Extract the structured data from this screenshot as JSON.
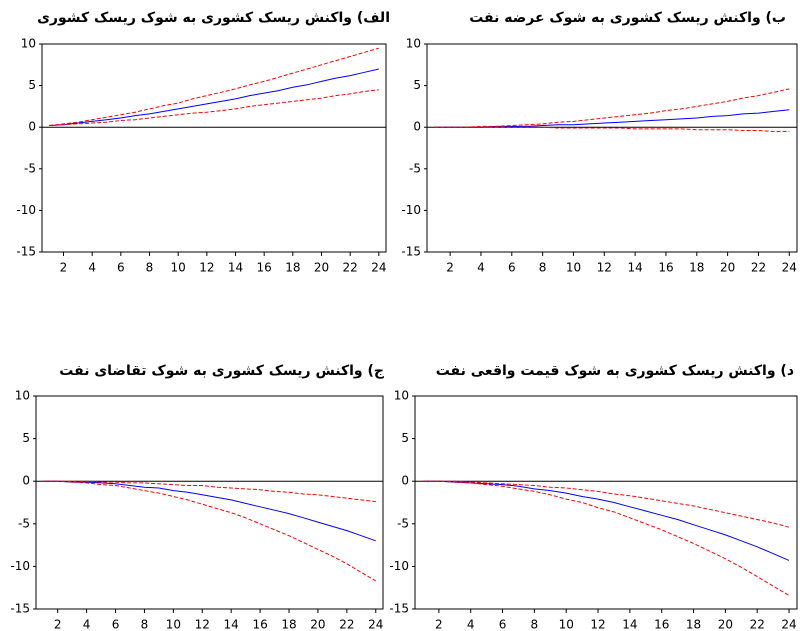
{
  "chart_data": [
    {
      "type": "line",
      "title": "الف) واکنش ریسک کشوری به شوک ریسک کشوری",
      "categories": [
        null,
        2,
        null,
        4,
        null,
        6,
        null,
        8,
        null,
        10,
        null,
        12,
        null,
        14,
        null,
        16,
        null,
        18,
        null,
        20,
        null,
        22,
        null,
        24
      ],
      "ylim": [
        -15,
        10
      ],
      "yticks": [
        10,
        5,
        0,
        -5,
        -10,
        -15
      ],
      "zero_line": true,
      "series": [
        {
          "color": "#0000ff",
          "dash": false,
          "values": [
            0.2,
            0.3,
            0.5,
            0.7,
            0.9,
            1.1,
            1.4,
            1.6,
            1.9,
            2.2,
            2.5,
            2.8,
            3.1,
            3.4,
            3.8,
            4.1,
            4.4,
            4.8,
            5.1,
            5.5,
            5.9,
            6.2,
            6.6,
            7.0
          ]
        },
        {
          "color": "#ff0000",
          "dash": true,
          "values": [
            0.2,
            0.4,
            0.6,
            0.9,
            1.2,
            1.5,
            1.8,
            2.2,
            2.6,
            2.9,
            3.4,
            3.8,
            4.2,
            4.6,
            5.1,
            5.5,
            6.0,
            6.5,
            7.0,
            7.5,
            8.0,
            8.5,
            9.0,
            9.5
          ]
        },
        {
          "color": "#ff0000",
          "dash": true,
          "values": [
            0.2,
            0.3,
            0.4,
            0.5,
            0.6,
            0.8,
            0.9,
            1.1,
            1.3,
            1.5,
            1.7,
            1.8,
            2.0,
            2.2,
            2.5,
            2.7,
            2.9,
            3.1,
            3.3,
            3.5,
            3.8,
            4.0,
            4.3,
            4.5
          ]
        }
      ]
    },
    {
      "type": "line",
      "title": "ب) واکنش ریسک کشوری به شوک عرضه نفت",
      "categories": [
        null,
        2,
        null,
        4,
        null,
        6,
        null,
        8,
        null,
        10,
        null,
        12,
        null,
        14,
        null,
        16,
        null,
        18,
        null,
        20,
        null,
        22,
        null,
        24
      ],
      "ylim": [
        -15,
        10
      ],
      "yticks": [
        10,
        5,
        0,
        -5,
        -10,
        -15
      ],
      "zero_line": true,
      "series": [
        {
          "color": "#0000ff",
          "dash": false,
          "values": [
            0,
            0,
            0,
            0,
            0.1,
            0.1,
            0.1,
            0.2,
            0.3,
            0.3,
            0.4,
            0.5,
            0.6,
            0.7,
            0.8,
            0.9,
            1.0,
            1.1,
            1.3,
            1.4,
            1.6,
            1.7,
            1.9,
            2.1
          ]
        },
        {
          "color": "#ff0000",
          "dash": true,
          "values": [
            0,
            0,
            0,
            0.1,
            0.1,
            0.2,
            0.3,
            0.4,
            0.6,
            0.7,
            0.9,
            1.1,
            1.3,
            1.5,
            1.7,
            2.0,
            2.2,
            2.5,
            2.8,
            3.1,
            3.5,
            3.8,
            4.2,
            4.6
          ]
        },
        {
          "color": "#ff0000",
          "dash": true,
          "values": [
            0,
            0,
            0,
            0,
            0,
            0,
            0,
            0,
            -0.1,
            -0.1,
            -0.1,
            -0.1,
            -0.1,
            -0.2,
            -0.2,
            -0.2,
            -0.2,
            -0.3,
            -0.3,
            -0.3,
            -0.4,
            -0.4,
            -0.5,
            -0.5
          ]
        }
      ]
    },
    {
      "type": "line",
      "title": "ج) واکنش ریسک کشوری به شوک تقاضای نفت",
      "categories": [
        null,
        2,
        null,
        4,
        null,
        6,
        null,
        8,
        null,
        10,
        null,
        12,
        null,
        14,
        null,
        16,
        null,
        18,
        null,
        20,
        null,
        22,
        null,
        24
      ],
      "ylim": [
        -15,
        10
      ],
      "yticks": [
        10,
        5,
        0,
        -5,
        -10,
        -15
      ],
      "zero_line": true,
      "series": [
        {
          "color": "#0000ff",
          "dash": false,
          "values": [
            0,
            0,
            -0.1,
            -0.1,
            -0.2,
            -0.3,
            -0.5,
            -0.7,
            -0.8,
            -1.1,
            -1.3,
            -1.6,
            -1.9,
            -2.2,
            -2.6,
            -3.0,
            -3.4,
            -3.8,
            -4.3,
            -4.8,
            -5.3,
            -5.8,
            -6.4,
            -7.0
          ]
        },
        {
          "color": "#ff0000",
          "dash": true,
          "values": [
            0,
            0,
            0,
            0,
            -0.1,
            -0.1,
            -0.2,
            -0.2,
            -0.3,
            -0.4,
            -0.5,
            -0.5,
            -0.7,
            -0.8,
            -0.9,
            -1.0,
            -1.2,
            -1.3,
            -1.5,
            -1.6,
            -1.8,
            -2.0,
            -2.2,
            -2.4
          ]
        },
        {
          "color": "#ff0000",
          "dash": true,
          "values": [
            0,
            0,
            -0.1,
            -0.2,
            -0.4,
            -0.5,
            -0.8,
            -1.1,
            -1.4,
            -1.8,
            -2.2,
            -2.7,
            -3.2,
            -3.7,
            -4.3,
            -5.0,
            -5.7,
            -6.4,
            -7.2,
            -8.0,
            -8.8,
            -9.7,
            -10.7,
            -11.7
          ]
        }
      ]
    },
    {
      "type": "line",
      "title": "د) واکنش ریسک کشوری به شوک قیمت واقعی نفت",
      "categories": [
        null,
        2,
        null,
        4,
        null,
        6,
        null,
        8,
        null,
        10,
        null,
        12,
        null,
        14,
        null,
        16,
        null,
        18,
        null,
        20,
        null,
        22,
        null,
        24
      ],
      "ylim": [
        -15,
        10
      ],
      "yticks": [
        10,
        5,
        0,
        -5,
        -10,
        -15
      ],
      "zero_line": true,
      "series": [
        {
          "color": "#0000ff",
          "dash": false,
          "values": [
            0,
            0,
            -0.1,
            -0.2,
            -0.3,
            -0.4,
            -0.6,
            -0.9,
            -1.1,
            -1.4,
            -1.8,
            -2.1,
            -2.5,
            -3.0,
            -3.5,
            -4.0,
            -4.5,
            -5.1,
            -5.7,
            -6.3,
            -7.0,
            -7.7,
            -8.5,
            -9.3
          ]
        },
        {
          "color": "#ff0000",
          "dash": true,
          "values": [
            0,
            0,
            0,
            -0.1,
            -0.2,
            -0.3,
            -0.4,
            -0.5,
            -0.7,
            -0.8,
            -1.0,
            -1.2,
            -1.5,
            -1.7,
            -2.0,
            -2.3,
            -2.6,
            -2.9,
            -3.3,
            -3.7,
            -4.1,
            -4.5,
            -4.9,
            -5.4
          ]
        },
        {
          "color": "#ff0000",
          "dash": true,
          "values": [
            0,
            0,
            -0.1,
            -0.2,
            -0.4,
            -0.6,
            -0.9,
            -1.2,
            -1.6,
            -2.1,
            -2.5,
            -3.1,
            -3.6,
            -4.3,
            -5.0,
            -5.7,
            -6.5,
            -7.3,
            -8.2,
            -9.1,
            -10.1,
            -11.2,
            -12.3,
            -13.4
          ]
        }
      ]
    }
  ]
}
